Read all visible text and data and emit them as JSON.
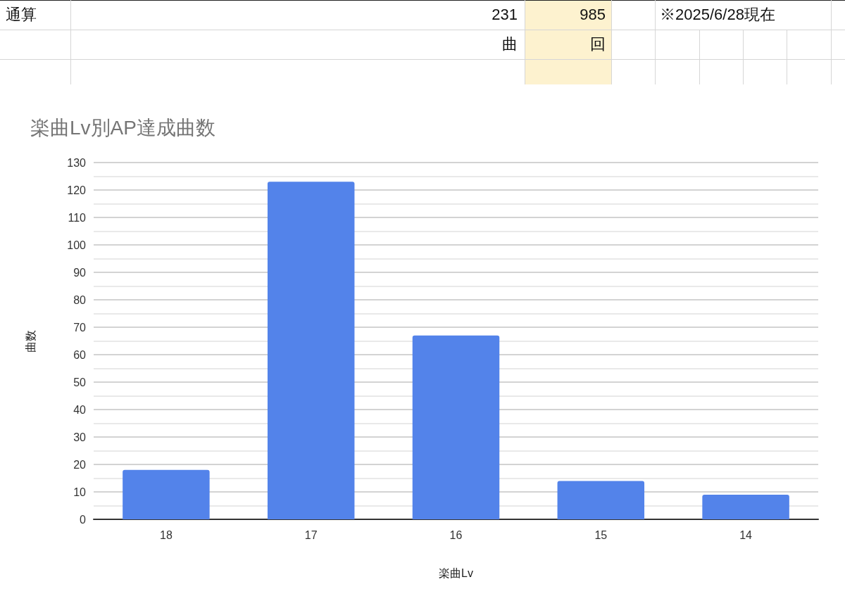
{
  "chart_data": {
    "type": "bar",
    "title": "楽曲Lv別AP達成曲数",
    "xlabel": "楽曲Lv",
    "ylabel": "曲数",
    "categories": [
      "18",
      "17",
      "16",
      "15",
      "14"
    ],
    "values": [
      18,
      123,
      67,
      14,
      9
    ],
    "color": "#5383ea",
    "ylim": [
      0,
      130
    ],
    "yticks": [
      0,
      {
        "value": 5,
        "label": null
      },
      10,
      {
        "value": 15,
        "label": null
      },
      20,
      {
        "value": 25,
        "label": null
      },
      30,
      {
        "value": 35,
        "label": null
      },
      40,
      {
        "value": 45,
        "label": null
      },
      50,
      {
        "value": 55,
        "label": null
      },
      60,
      {
        "value": 65,
        "label": null
      },
      70,
      {
        "value": 75,
        "label": null
      },
      80,
      {
        "value": 85,
        "label": null
      },
      90,
      {
        "value": 95,
        "label": null
      },
      100,
      {
        "value": 105,
        "label": null
      },
      110,
      {
        "value": 115,
        "label": null
      },
      120,
      {
        "value": 125,
        "label": null
      },
      130
    ],
    "grid": "y",
    "annotations": [
      "通算",
      "231",
      "985",
      "※2025/6/28現在",
      "曲",
      "回"
    ]
  }
}
